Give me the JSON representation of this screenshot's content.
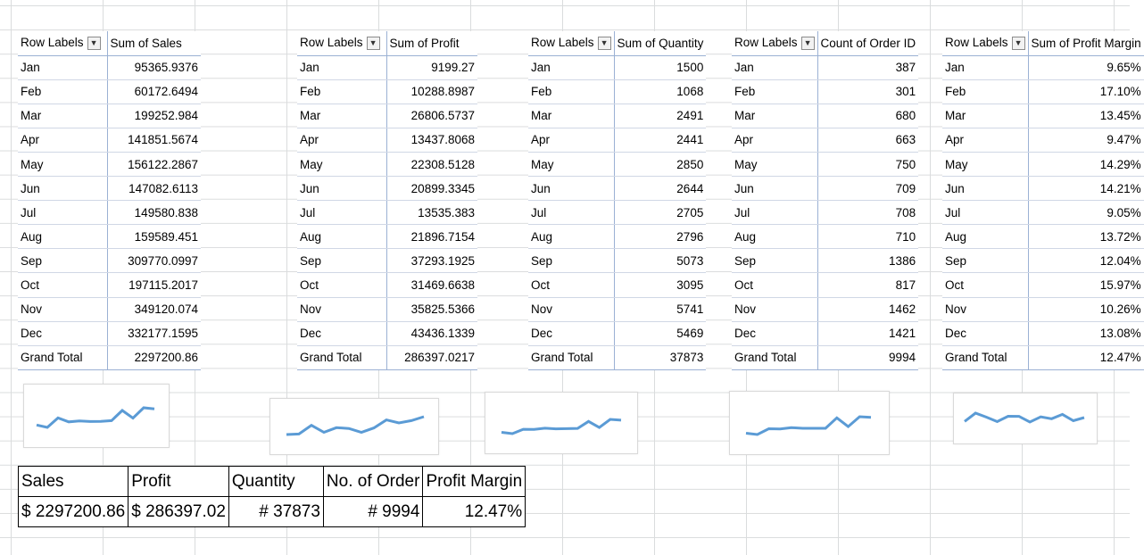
{
  "months": [
    "Jan",
    "Feb",
    "Mar",
    "Apr",
    "May",
    "Jun",
    "Jul",
    "Aug",
    "Sep",
    "Oct",
    "Nov",
    "Dec"
  ],
  "row_labels_header": "Row Labels",
  "grand_total_label": "Grand Total",
  "accent_color": "#5b9bd5",
  "pivots": [
    {
      "value_header": "Sum of Sales",
      "values": [
        "95365.9376",
        "60172.6494",
        "199252.984",
        "141851.5674",
        "156122.2867",
        "147082.6113",
        "149580.838",
        "159589.451",
        "309770.0997",
        "197115.2017",
        "349120.074",
        "332177.1595"
      ],
      "total": "2297200.86"
    },
    {
      "value_header": "Sum of Profit",
      "values": [
        "9199.27",
        "10288.8987",
        "26806.5737",
        "13437.8068",
        "22308.5128",
        "20899.3345",
        "13535.383",
        "21896.7154",
        "37293.1925",
        "31469.6638",
        "35825.5366",
        "43436.1339"
      ],
      "total": "286397.0217"
    },
    {
      "value_header": "Sum of Quantity",
      "values": [
        "1500",
        "1068",
        "2491",
        "2441",
        "2850",
        "2644",
        "2705",
        "2796",
        "5073",
        "3095",
        "5741",
        "5469"
      ],
      "total": "37873"
    },
    {
      "value_header": "Count of Order ID",
      "values": [
        "387",
        "301",
        "680",
        "663",
        "750",
        "709",
        "708",
        "710",
        "1386",
        "817",
        "1462",
        "1421"
      ],
      "total": "9994"
    },
    {
      "value_header": "Sum of Profit Margin",
      "values": [
        "9.65%",
        "17.10%",
        "13.45%",
        "9.47%",
        "14.29%",
        "14.21%",
        "9.05%",
        "13.72%",
        "12.04%",
        "15.97%",
        "10.26%",
        "13.08%"
      ],
      "total": "12.47%"
    }
  ],
  "summary": {
    "headers": [
      "Sales",
      "Profit",
      "Quantity",
      "No. of Order",
      "Profit Margin"
    ],
    "values": [
      "$ 2297200.86",
      "$ 286397.02",
      "# 37873",
      "# 9994",
      "12.47%"
    ]
  }
}
